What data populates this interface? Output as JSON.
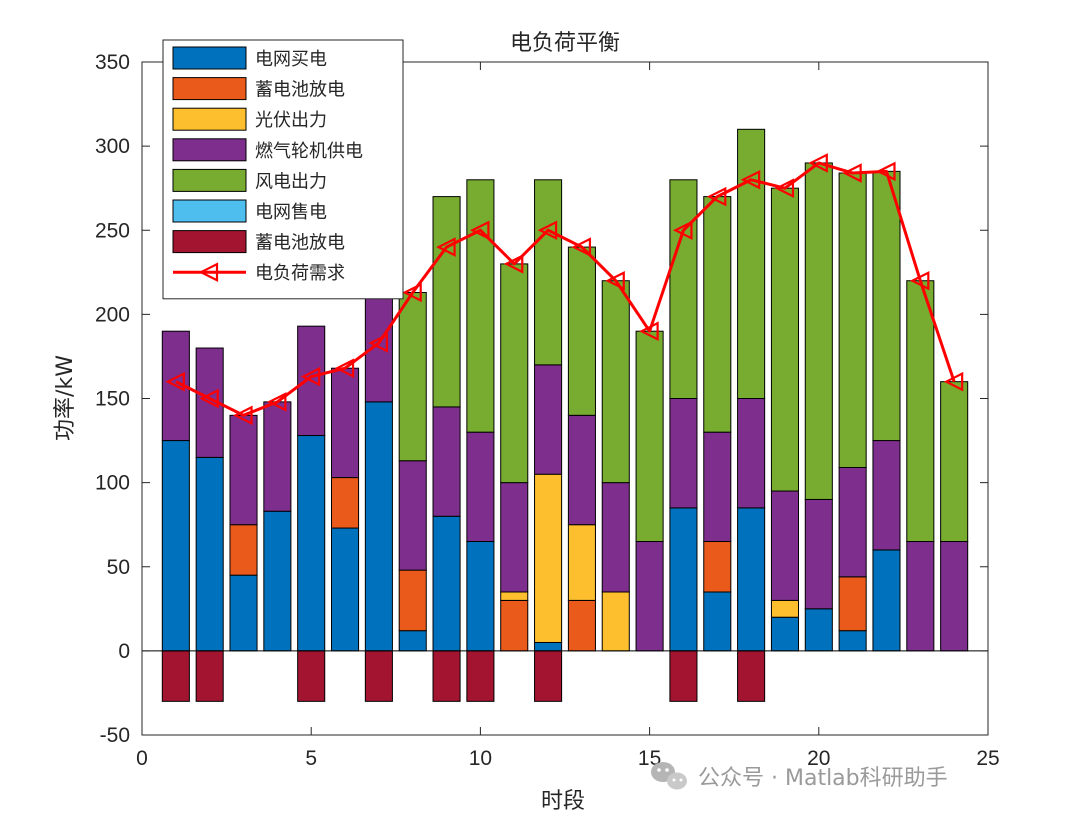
{
  "chart_data": {
    "type": "bar",
    "title": "电负荷平衡",
    "xlabel": "时段",
    "ylabel": "功率/kW",
    "xlim": [
      0,
      25
    ],
    "ylim": [
      -50,
      350
    ],
    "xticks": [
      0,
      5,
      10,
      15,
      20,
      25
    ],
    "yticks": [
      -50,
      0,
      50,
      100,
      150,
      200,
      250,
      300,
      350
    ],
    "grid": false,
    "legend_position": "top-left",
    "stacked": true,
    "categories": [
      1,
      2,
      3,
      4,
      5,
      6,
      7,
      8,
      9,
      10,
      11,
      12,
      13,
      14,
      15,
      16,
      17,
      18,
      19,
      20,
      21,
      22,
      23,
      24
    ],
    "series": [
      {
        "name": "电网买电",
        "color": "#0072BD",
        "values": [
          125,
          115,
          45,
          83,
          128,
          73,
          148,
          12,
          80,
          65,
          0,
          5,
          0,
          0,
          0,
          85,
          35,
          85,
          20,
          25,
          12,
          60,
          0,
          0
        ]
      },
      {
        "name": "蓄电池放电",
        "color": "#EA5A1A",
        "values": [
          0,
          0,
          30,
          0,
          0,
          30,
          0,
          36,
          0,
          0,
          30,
          0,
          30,
          0,
          0,
          0,
          30,
          0,
          0,
          0,
          32,
          0,
          0,
          0
        ]
      },
      {
        "name": "光伏出力",
        "color": "#FDBF2D",
        "values": [
          0,
          0,
          0,
          0,
          0,
          0,
          0,
          0,
          0,
          0,
          5,
          100,
          45,
          35,
          0,
          0,
          0,
          0,
          10,
          0,
          0,
          0,
          0,
          0
        ]
      },
      {
        "name": "燃气轮机供电",
        "color": "#7E2F8E",
        "values": [
          65,
          65,
          65,
          65,
          65,
          65,
          65,
          65,
          65,
          65,
          65,
          65,
          65,
          65,
          65,
          65,
          65,
          65,
          65,
          65,
          65,
          65,
          65,
          65
        ]
      },
      {
        "name": "风电出力",
        "color": "#77AC30",
        "values": [
          0,
          0,
          0,
          0,
          0,
          0,
          0,
          100,
          125,
          150,
          130,
          110,
          100,
          120,
          125,
          130,
          140,
          160,
          180,
          200,
          175,
          160,
          155,
          95
        ]
      },
      {
        "name": "电网售电",
        "color": "#4DBEEE",
        "values": [
          0,
          0,
          0,
          0,
          0,
          0,
          0,
          0,
          0,
          0,
          0,
          0,
          0,
          0,
          0,
          0,
          0,
          0,
          0,
          0,
          0,
          0,
          0,
          0
        ]
      },
      {
        "name": "蓄电池放电",
        "color": "#A2142F",
        "values": [
          -30,
          -30,
          0,
          0,
          -30,
          0,
          -30,
          0,
          -30,
          -30,
          0,
          -30,
          0,
          0,
          0,
          -30,
          0,
          -30,
          0,
          0,
          0,
          0,
          0,
          0
        ]
      }
    ],
    "line_series": {
      "name": "电负荷需求",
      "color": "#FF0000",
      "marker": "left-triangle",
      "values": [
        160,
        150,
        140,
        148,
        163,
        168,
        183,
        213,
        240,
        250,
        230,
        250,
        240,
        220,
        190,
        250,
        270,
        280,
        275,
        290,
        284,
        285,
        220,
        160
      ]
    }
  },
  "watermark": "公众号 · Matlab科研助手"
}
